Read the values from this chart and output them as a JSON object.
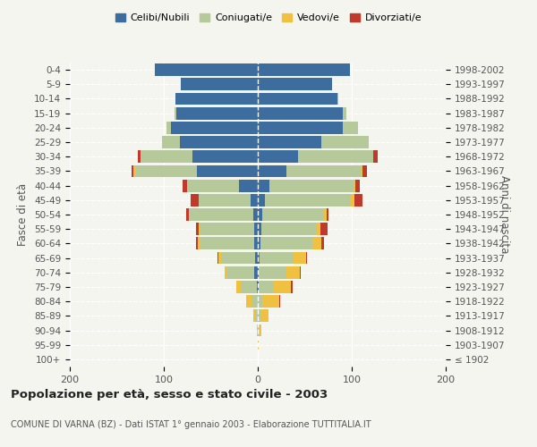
{
  "age_groups": [
    "100+",
    "95-99",
    "90-94",
    "85-89",
    "80-84",
    "75-79",
    "70-74",
    "65-69",
    "60-64",
    "55-59",
    "50-54",
    "45-49",
    "40-44",
    "35-39",
    "30-34",
    "25-29",
    "20-24",
    "15-19",
    "10-14",
    "5-9",
    "0-4"
  ],
  "birth_years": [
    "≤ 1902",
    "1903-1907",
    "1908-1912",
    "1913-1917",
    "1918-1922",
    "1923-1927",
    "1928-1932",
    "1933-1937",
    "1938-1942",
    "1943-1947",
    "1948-1952",
    "1953-1957",
    "1958-1962",
    "1963-1967",
    "1968-1972",
    "1973-1977",
    "1978-1982",
    "1983-1987",
    "1988-1992",
    "1993-1997",
    "1998-2002"
  ],
  "male": {
    "celibi": [
      0,
      0,
      0,
      0,
      0,
      1,
      4,
      3,
      4,
      4,
      5,
      8,
      20,
      65,
      70,
      83,
      92,
      87,
      88,
      82,
      110
    ],
    "coniugati": [
      0,
      0,
      1,
      3,
      7,
      17,
      28,
      36,
      57,
      58,
      68,
      55,
      55,
      65,
      55,
      18,
      5,
      2,
      0,
      0,
      0
    ],
    "vedovi": [
      0,
      0,
      0,
      2,
      5,
      5,
      3,
      3,
      3,
      1,
      0,
      0,
      0,
      2,
      0,
      1,
      0,
      0,
      0,
      0,
      0
    ],
    "divorziati": [
      0,
      0,
      0,
      0,
      0,
      0,
      0,
      1,
      2,
      3,
      3,
      8,
      5,
      2,
      3,
      0,
      0,
      0,
      0,
      0,
      0
    ]
  },
  "female": {
    "nubili": [
      0,
      0,
      0,
      0,
      0,
      1,
      1,
      2,
      3,
      4,
      5,
      8,
      12,
      30,
      43,
      68,
      90,
      90,
      85,
      79,
      98
    ],
    "coniugate": [
      0,
      0,
      1,
      3,
      5,
      16,
      29,
      36,
      55,
      58,
      65,
      90,
      90,
      80,
      80,
      50,
      17,
      4,
      1,
      0,
      0
    ],
    "vedove": [
      0,
      1,
      3,
      8,
      18,
      18,
      15,
      13,
      10,
      5,
      3,
      5,
      2,
      1,
      0,
      0,
      0,
      0,
      0,
      0,
      0
    ],
    "divorziate": [
      0,
      0,
      0,
      0,
      1,
      2,
      1,
      1,
      2,
      7,
      2,
      8,
      5,
      5,
      5,
      0,
      0,
      0,
      0,
      0,
      0
    ]
  },
  "colors": {
    "celibi_nubili": "#3d6d9e",
    "coniugati": "#b5c99a",
    "vedovi": "#f0c040",
    "divorziati": "#c0392b"
  },
  "title": "Popolazione per età, sesso e stato civile - 2003",
  "subtitle": "COMUNE DI VARNA (BZ) - Dati ISTAT 1° gennaio 2003 - Elaborazione TUTTITALIA.IT",
  "ylabel_left": "Fasce di età",
  "ylabel_right": "Anni di nascita",
  "xlim": 200,
  "background_color": "#f5f5f0",
  "plot_bg": "#f5f5f0"
}
